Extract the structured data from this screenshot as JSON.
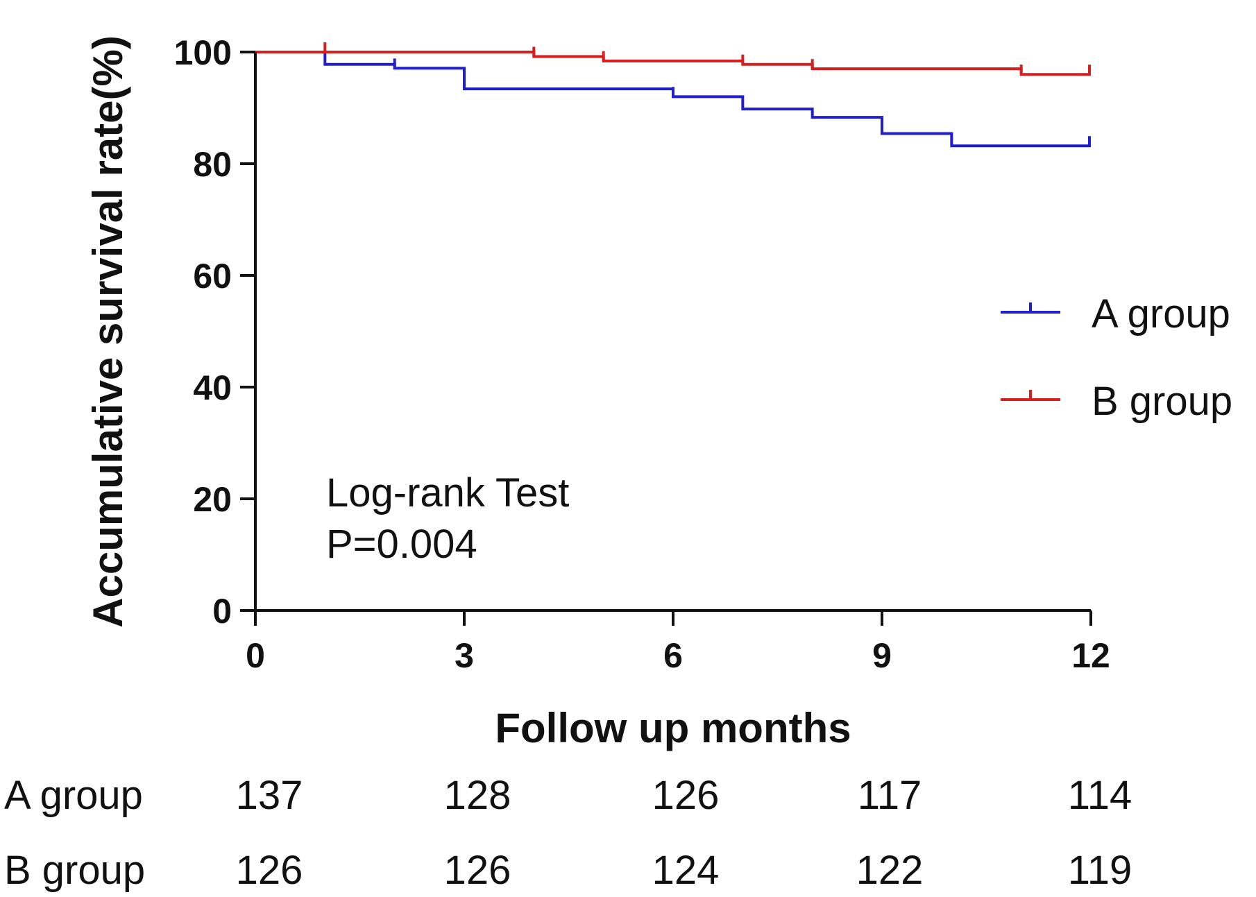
{
  "chart_data": {
    "type": "line",
    "title": "",
    "xlabel": "Follow up months",
    "ylabel": "Accumulative survival rate(%)",
    "xlim": [
      0,
      12
    ],
    "ylim": [
      0,
      100
    ],
    "x_ticks": [
      0,
      3,
      6,
      9,
      12
    ],
    "y_ticks": [
      0,
      20,
      40,
      60,
      80,
      100
    ],
    "x_tick_labels": [
      "0",
      "3",
      "6",
      "9",
      "12"
    ],
    "y_tick_labels": [
      "0",
      "20",
      "40",
      "60",
      "80",
      "100"
    ],
    "grid": false,
    "legend_position": "right",
    "annotation": {
      "line1": "Log-rank Test",
      "line2": "P=0.004"
    },
    "series": [
      {
        "name": "A group",
        "color": "#1f1fd0",
        "steps": [
          {
            "x": 0,
            "y": 100
          },
          {
            "x": 1,
            "y": 97.8
          },
          {
            "x": 2,
            "y": 97.1
          },
          {
            "x": 3,
            "y": 93.4
          },
          {
            "x": 6,
            "y": 92.0
          },
          {
            "x": 7,
            "y": 89.8
          },
          {
            "x": 8,
            "y": 88.3
          },
          {
            "x": 9,
            "y": 85.4
          },
          {
            "x": 10,
            "y": 83.2
          },
          {
            "x": 12,
            "y": 83.2
          }
        ],
        "censor_x": [
          2,
          6,
          12
        ]
      },
      {
        "name": "B group",
        "color": "#d61f1f",
        "steps": [
          {
            "x": 0,
            "y": 100
          },
          {
            "x": 4,
            "y": 99.2
          },
          {
            "x": 5,
            "y": 98.4
          },
          {
            "x": 7,
            "y": 97.8
          },
          {
            "x": 8,
            "y": 97.0
          },
          {
            "x": 11,
            "y": 96.0
          },
          {
            "x": 12,
            "y": 96.0
          }
        ],
        "censor_x": [
          1,
          4,
          5,
          7,
          8,
          11,
          12
        ]
      }
    ],
    "risk_table": {
      "rows": [
        {
          "label": "A group",
          "values": [
            "137",
            "128",
            "126",
            "117",
            "114"
          ]
        },
        {
          "label": "B group",
          "values": [
            "126",
            "126",
            "124",
            "122",
            "119"
          ]
        }
      ]
    }
  }
}
